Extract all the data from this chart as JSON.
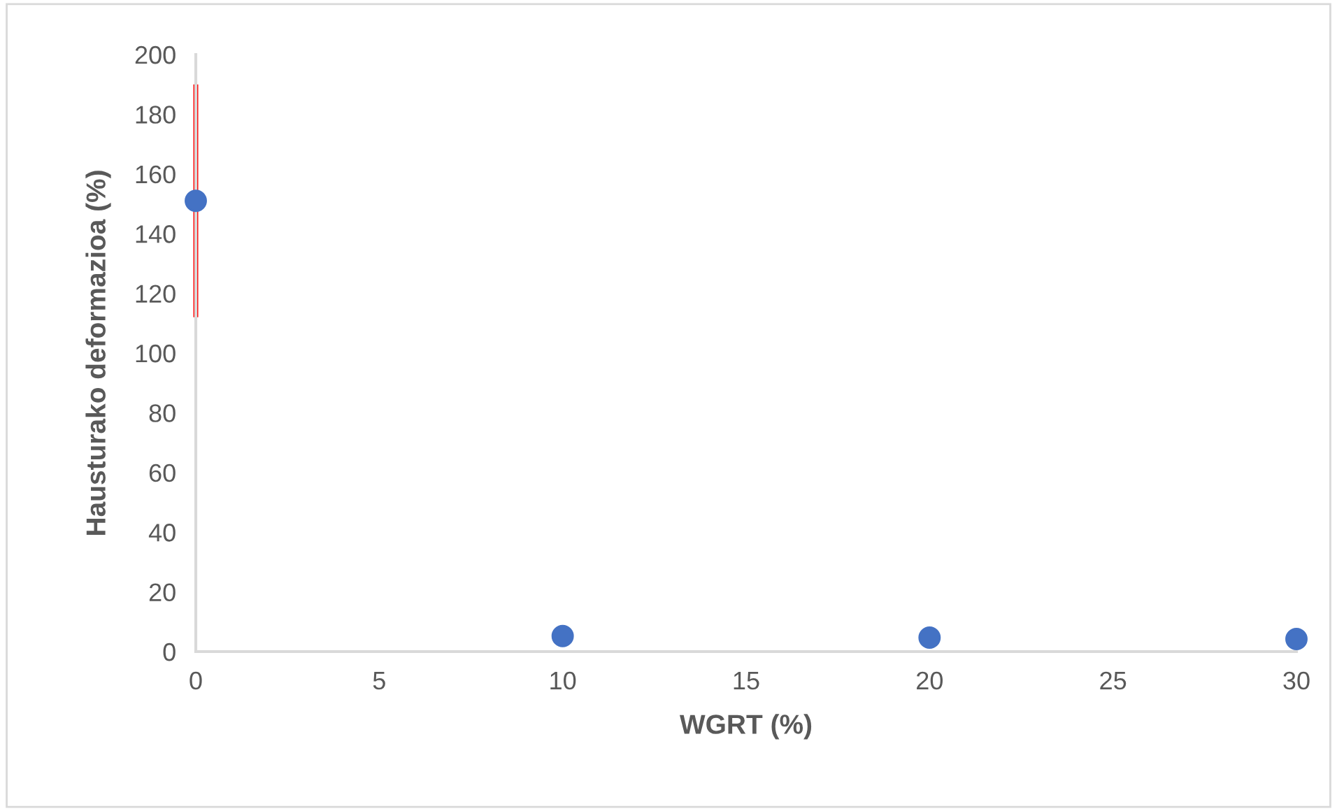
{
  "chart_data": {
    "type": "scatter",
    "xlabel": "WGRT (%)",
    "ylabel": "Hausturako deformazioa (%)",
    "x": [
      0,
      10,
      20,
      30
    ],
    "series": [
      {
        "color": "#4472c4",
        "values": [
          151,
          5.2,
          4.7,
          4.2
        ],
        "errors": [
          39,
          null,
          null,
          null
        ]
      }
    ],
    "xlim": [
      0,
      30
    ],
    "xticks": [
      0,
      5,
      10,
      15,
      20,
      25,
      30
    ],
    "ylim": [
      0,
      200
    ],
    "yticks": [
      0,
      20,
      40,
      60,
      80,
      100,
      120,
      140,
      160,
      180,
      200
    ],
    "grid": false,
    "marker": "circle"
  }
}
